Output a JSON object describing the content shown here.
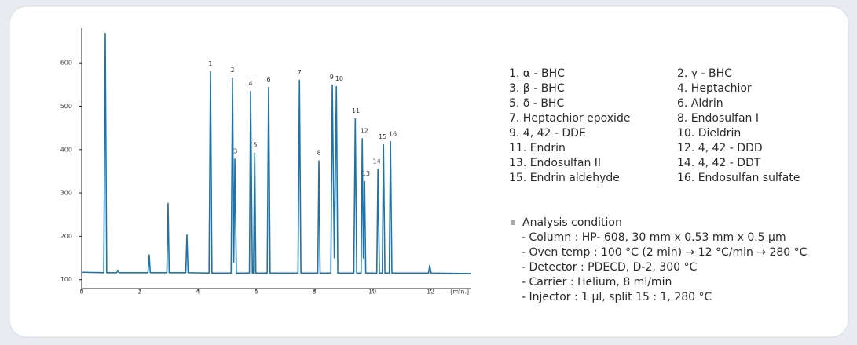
{
  "chart_data": {
    "type": "line",
    "color": "#1f73a8",
    "x": [
      0,
      0.76,
      0.81,
      0.86,
      1.2,
      1.24,
      1.28,
      2.28,
      2.32,
      2.36,
      2.93,
      2.97,
      3.01,
      3.58,
      3.62,
      3.66,
      4.38,
      4.43,
      4.48,
      5.14,
      5.19,
      5.23,
      5.27,
      5.32,
      5.77,
      5.81,
      5.87,
      5.91,
      5.95,
      5.99,
      6.38,
      6.43,
      6.48,
      7.44,
      7.49,
      7.54,
      8.12,
      8.16,
      8.2,
      8.57,
      8.62,
      8.69,
      8.76,
      8.81,
      9.36,
      9.41,
      9.46,
      9.61,
      9.65,
      9.69,
      9.73,
      9.77,
      10.15,
      10.19,
      10.24,
      10.34,
      10.38,
      10.43,
      10.58,
      10.62,
      10.67,
      11.93,
      11.97,
      12.02,
      13.4
    ],
    "values": [
      117,
      116,
      668,
      116,
      116,
      122,
      116,
      116,
      157,
      116,
      116,
      276,
      116,
      116,
      203,
      116,
      115,
      580,
      115,
      115,
      565,
      140,
      378,
      115,
      115,
      534,
      115,
      115,
      392,
      115,
      115,
      543,
      115,
      115,
      560,
      115,
      115,
      374,
      115,
      115,
      549,
      150,
      545,
      115,
      115,
      471,
      115,
      115,
      425,
      150,
      326,
      115,
      115,
      354,
      115,
      115,
      411,
      115,
      115,
      418,
      115,
      115,
      133,
      115,
      114
    ],
    "xlim": [
      0,
      13.4
    ],
    "ylim": [
      65,
      680
    ],
    "xticks": [
      0,
      2,
      4,
      6,
      8,
      10,
      12,
      {
        "value": 13,
        "label": "[min.]"
      }
    ],
    "yticks": [
      100,
      200,
      300,
      400,
      500,
      600
    ],
    "annotations": [
      {
        "text": "1",
        "x": 4.43,
        "y": 580
      },
      {
        "text": "2",
        "x": 5.19,
        "y": 565
      },
      {
        "text": "3",
        "x": 5.29,
        "y": 378
      },
      {
        "text": "4",
        "x": 5.81,
        "y": 534
      },
      {
        "text": "5",
        "x": 5.97,
        "y": 392
      },
      {
        "text": "6",
        "x": 6.43,
        "y": 543
      },
      {
        "text": "7",
        "x": 7.49,
        "y": 560
      },
      {
        "text": "8",
        "x": 8.16,
        "y": 374
      },
      {
        "text": "9",
        "x": 8.6,
        "y": 549
      },
      {
        "text": "10",
        "x": 8.86,
        "y": 545
      },
      {
        "text": "11",
        "x": 9.43,
        "y": 471
      },
      {
        "text": "12",
        "x": 9.72,
        "y": 425
      },
      {
        "text": "13",
        "x": 9.78,
        "y": 326
      },
      {
        "text": "14",
        "x": 10.15,
        "y": 354
      },
      {
        "text": "15",
        "x": 10.35,
        "y": 411
      },
      {
        "text": "16",
        "x": 10.7,
        "y": 418
      }
    ]
  },
  "compounds": [
    "1. α - BHC",
    "2. γ - BHC",
    "3. β - BHC",
    "4. Heptachior",
    "5. δ - BHC",
    "6. Aldrin",
    "7. Heptachior epoxide",
    "8. Endosulfan Ⅰ",
    "9. 4, 42 - DDE",
    "10. Dieldrin",
    "11. Endrin",
    "12. 4, 42 - DDD",
    "13. Endosulfan ⅠⅠ",
    "14. 4, 42 - DDT",
    "15. Endrin aldehyde",
    "16. Endosulfan sulfate"
  ],
  "analysis": {
    "title": "Analysis condition",
    "lines": [
      "- Column : HP- 608, 30 mm x 0.53 mm x 0.5 μm",
      "- Oven temp : 100 °C (2 min) → 12 °C/min → 280 °C",
      "- Detector : PDECD, D-2, 300 °C",
      "- Carrier : Helium, 8 ml/min",
      "- Injector : 1 μl, split 15 : 1, 280 °C"
    ]
  }
}
